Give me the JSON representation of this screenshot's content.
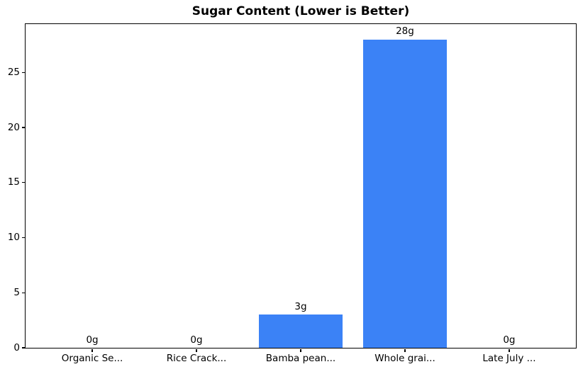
{
  "chart_data": {
    "type": "bar",
    "title": "Sugar Content (Lower is Better)",
    "categories": [
      "Organic Se...",
      "Rice Crack...",
      "Bamba pean...",
      "Whole grai...",
      "Late July ..."
    ],
    "values": [
      0,
      0,
      3,
      28,
      0
    ],
    "value_labels": [
      "0g",
      "0g",
      "3g",
      "28g",
      "0g"
    ],
    "xlabel": "",
    "ylabel": "",
    "yticks": [
      0,
      5,
      10,
      15,
      20,
      25
    ],
    "ylim": [
      0,
      29.4
    ],
    "xlim": [
      -0.64,
      4.64
    ],
    "bar_width": 0.8,
    "bar_color": "#3b82f6",
    "axis_color": "#000000",
    "grid": false,
    "legend": "none"
  }
}
